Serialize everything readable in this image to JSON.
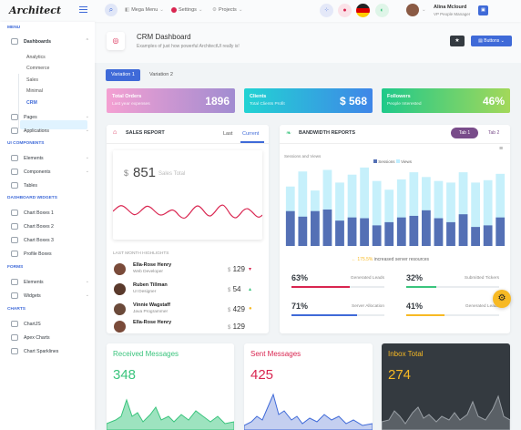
{
  "header": {
    "logo": "Architect",
    "menu1": "Mega Menu",
    "menu2": "Settings",
    "menu3": "Projects",
    "user_name": "Alina Mclourd",
    "user_role": "VP People Manager"
  },
  "sidebar": {
    "menu_heading": "MENU",
    "dashboards": "Dashboards",
    "sub": [
      "Analytics",
      "Commerce",
      "Sales",
      "Minimal",
      "CRM"
    ],
    "pages": "Pages",
    "applications": "Applications",
    "ui_heading": "UI COMPONENTS",
    "elements": "Elements",
    "components": "Components",
    "tables": "Tables",
    "widgets_heading": "DASHBOARD WIDGETS",
    "chart_boxes_1": "Chart Boxes 1",
    "chart_boxes_2": "Chart Boxes 2",
    "chart_boxes_3": "Chart Boxes 3",
    "profile_boxes": "Profile Boxes",
    "forms_heading": "FORMS",
    "forms_elements": "Elements",
    "forms_widgets": "Widgets",
    "charts_heading": "CHARTS",
    "chartjs": "ChartJS",
    "apex": "Apex Charts",
    "sparklines": "Chart Sparklines"
  },
  "page": {
    "title": "CRM Dashboard",
    "subtitle": "Examples of just how powerful ArchitectUI really is!",
    "buttons_label": "Buttons"
  },
  "tabs": [
    "Variation 1",
    "Variation 2"
  ],
  "kpis": [
    {
      "title": "Total Orders",
      "sub": "Last year expenses",
      "value": "1896"
    },
    {
      "title": "Clients",
      "sub": "Total Clients Profit",
      "value": "$ 568"
    },
    {
      "title": "Followers",
      "sub": "People Interested",
      "value": "46%"
    }
  ],
  "sales": {
    "title": "SALES REPORT",
    "tab_last": "Last",
    "tab_current": "Current",
    "currency": "$",
    "value": "851",
    "value_label": "Sales Total",
    "highlights": "LAST MONTH HIGHLIGHTS",
    "people": [
      {
        "name": "Ella-Rose Henry",
        "role": "Web Developer",
        "currency": "$",
        "value": "129",
        "arrow": "▾"
      },
      {
        "name": "Ruben Tillman",
        "role": "UI Designer",
        "currency": "$",
        "value": "54",
        "arrow": "▴"
      },
      {
        "name": "Vinnie Wagstaff",
        "role": "Java Programmer",
        "currency": "$",
        "value": "429",
        "arrow": "●"
      },
      {
        "name": "Ella-Rose Henry",
        "role": "",
        "currency": "$",
        "value": "129",
        "arrow": ""
      }
    ]
  },
  "bandwidth": {
    "title": "BANDWIDTH REPORTS",
    "tab1": "Tab 1",
    "tab2": "Tab 2",
    "chart_caption": "Sessions and Views",
    "legend_sessions": "Sessions",
    "legend_views": "Views",
    "increase": "175.5%",
    "increase_label": "increased server resources",
    "stats": [
      {
        "value": "63%",
        "label": "Generated Leads",
        "pct": 0.63,
        "color": "#d92550"
      },
      {
        "value": "32%",
        "label": "Submitted Tickers",
        "pct": 0.32,
        "color": "#3ac47d"
      },
      {
        "value": "71%",
        "label": "Server Allocation",
        "pct": 0.71,
        "color": "#3f6ad8"
      },
      {
        "value": "41%",
        "label": "Generated Leads",
        "pct": 0.41,
        "color": "#f7b924"
      }
    ]
  },
  "bottom": [
    {
      "title": "Received Messages",
      "value": "348",
      "color": "#3ac47d"
    },
    {
      "title": "Sent Messages",
      "value": "425",
      "color": "#d92550"
    },
    {
      "title": "Inbox Total",
      "value": "274",
      "color": "#f7b924"
    }
  ],
  "colors": {
    "primary": "#3f6ad8",
    "dark": "#343a40"
  },
  "chart_data": {
    "type": "bar",
    "series": [
      {
        "name": "Sessions",
        "values": [
          44,
          37,
          44,
          46,
          32,
          36,
          35,
          26,
          30,
          36,
          38,
          45,
          35,
          30,
          40,
          24,
          26,
          36
        ]
      },
      {
        "name": "Views",
        "values": [
          75,
          94,
          70,
          96,
          80,
          90,
          99,
          82,
          71,
          84,
          93,
          87,
          82,
          80,
          93,
          80,
          83,
          91
        ]
      }
    ]
  }
}
